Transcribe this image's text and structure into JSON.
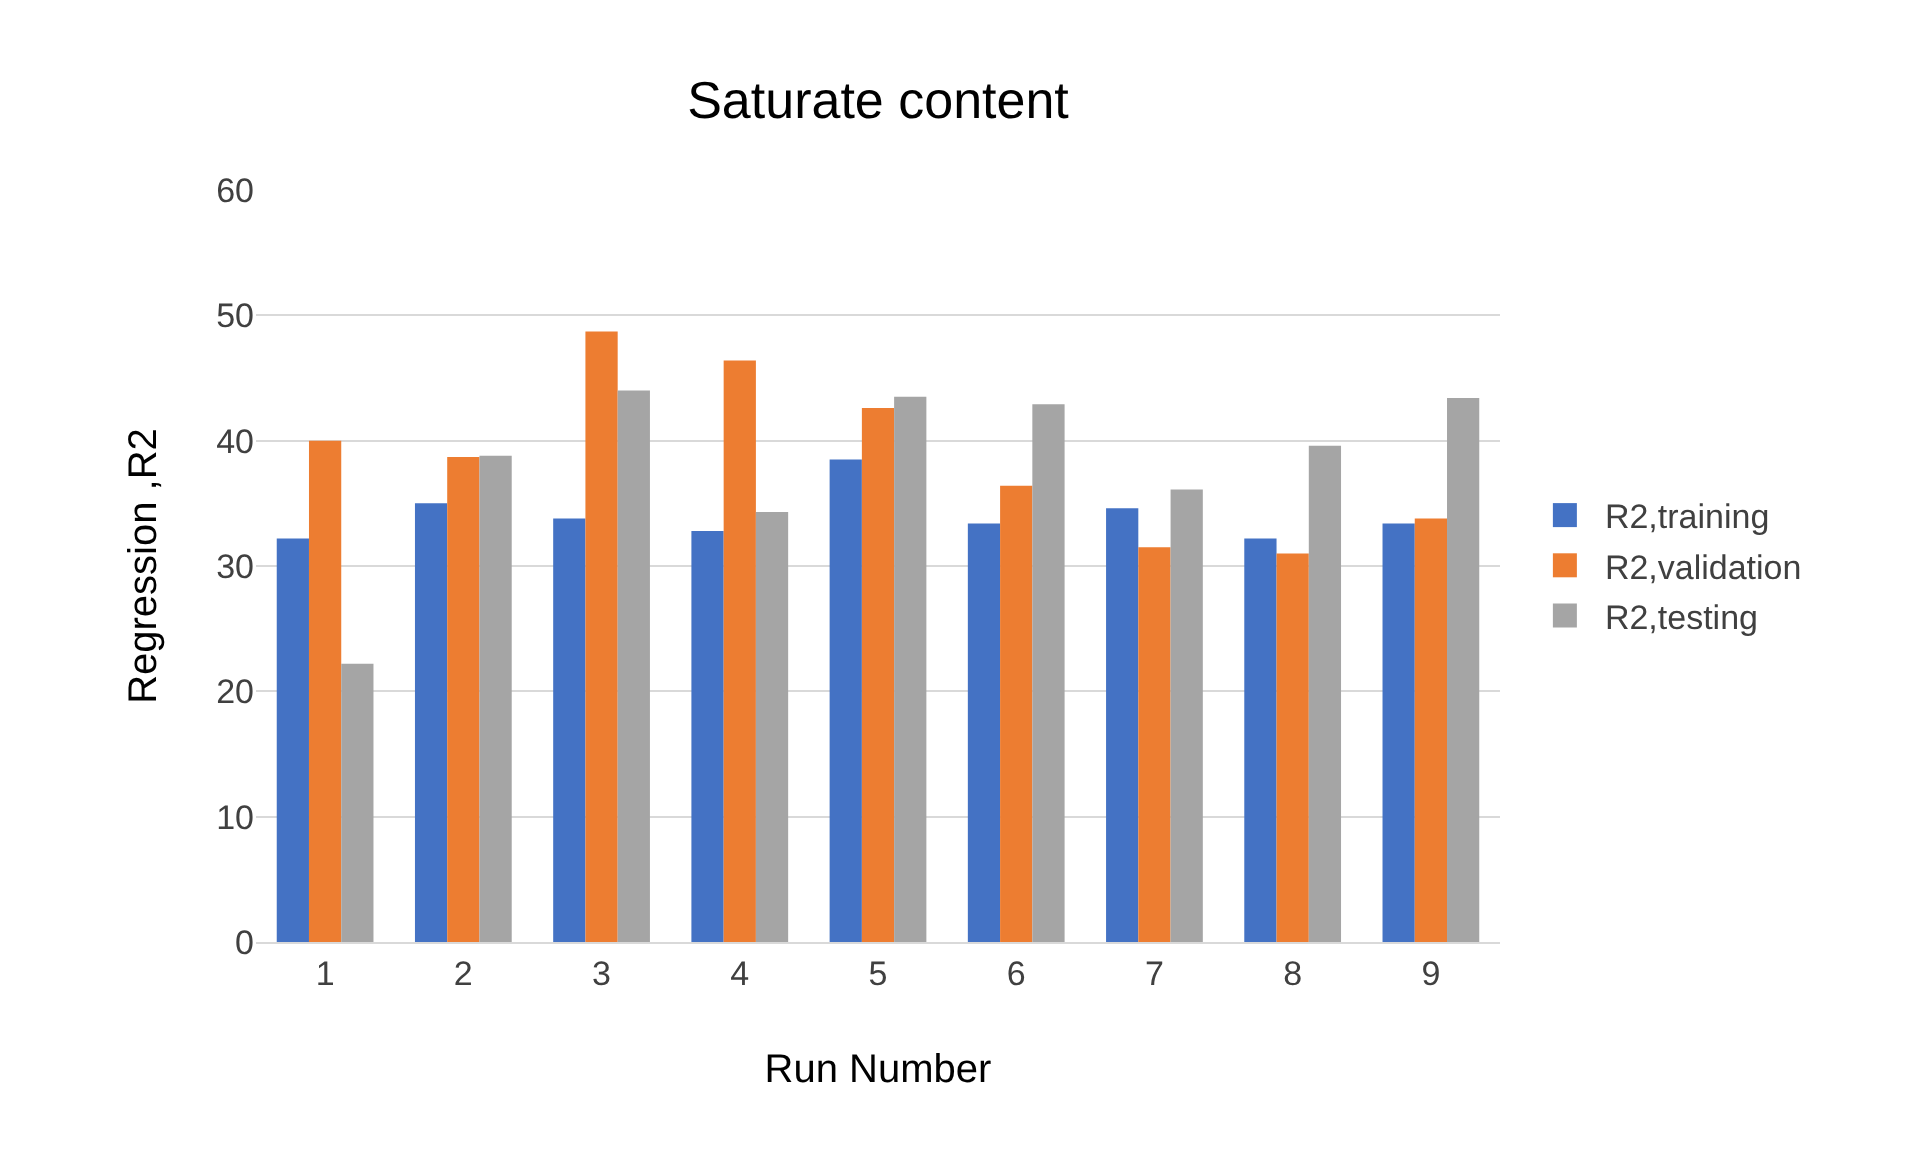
{
  "chart_data": {
    "type": "bar",
    "title": "Saturate content",
    "xlabel": "Run Number",
    "ylabel": "Regression ,R2",
    "categories": [
      "1",
      "2",
      "3",
      "4",
      "5",
      "6",
      "7",
      "8",
      "9"
    ],
    "series": [
      {
        "name": "R2,training",
        "color": "#4472c4",
        "values": [
          32.2,
          35,
          33.8,
          32.8,
          38.5,
          33.4,
          34.6,
          32.2,
          33.4
        ]
      },
      {
        "name": "R2,validation",
        "color": "#ed7d31",
        "values": [
          40,
          38.7,
          48.7,
          46.4,
          42.6,
          36.4,
          31.5,
          31,
          33.8
        ]
      },
      {
        "name": "R2,testing",
        "color": "#a5a5a5",
        "values": [
          22.2,
          38.8,
          44,
          34.3,
          43.5,
          42.9,
          36.1,
          39.6,
          43.4
        ]
      }
    ],
    "ylim": [
      0,
      60
    ],
    "yticks": [
      0,
      10,
      20,
      30,
      40,
      50,
      60
    ],
    "grid": "y",
    "legend": "right"
  }
}
